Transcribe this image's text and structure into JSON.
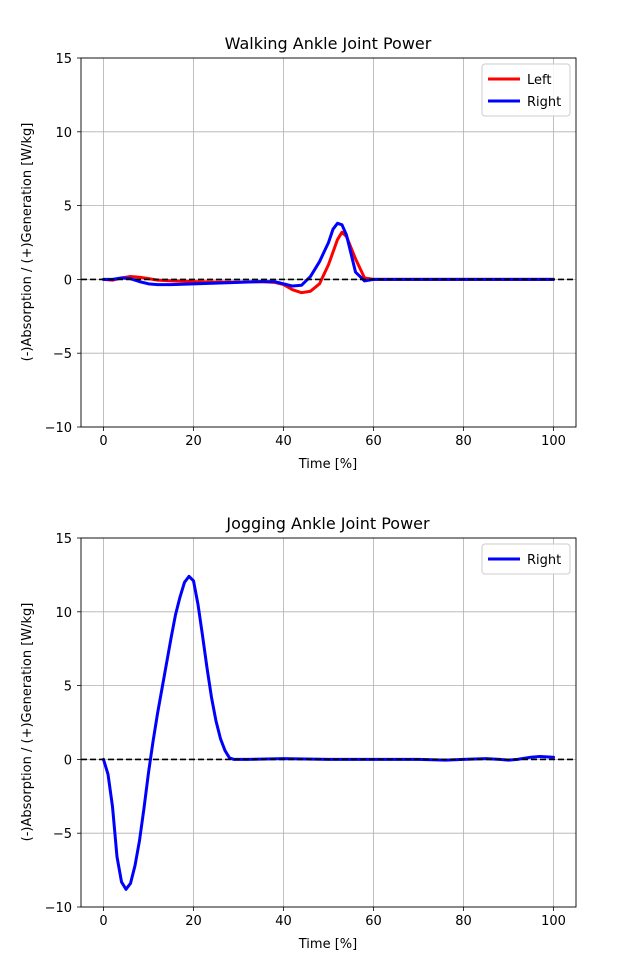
{
  "chart_data": [
    {
      "type": "line",
      "title": "Walking Ankle Joint Power",
      "xlabel": "Time [%]",
      "ylabel": "(-)Absorption / (+)Generation [W/kg]",
      "xlim": [
        -5,
        105
      ],
      "ylim": [
        -10,
        15
      ],
      "xticks": [
        0,
        20,
        40,
        60,
        80,
        100
      ],
      "yticks": [
        -10,
        -5,
        0,
        5,
        10,
        15
      ],
      "grid": true,
      "legend": "top-right",
      "reference_line": {
        "y": 0,
        "style": "dashed",
        "color": "#000000"
      },
      "series": [
        {
          "name": "Left",
          "color": "#ff0000",
          "x": [
            0,
            2,
            4,
            6,
            8,
            10,
            12,
            15,
            20,
            25,
            30,
            35,
            38,
            40,
            42,
            44,
            46,
            48,
            50,
            52,
            53,
            54,
            56,
            58,
            60,
            70,
            80,
            90,
            100
          ],
          "y": [
            0.0,
            -0.05,
            0.1,
            0.2,
            0.15,
            0.05,
            -0.05,
            -0.1,
            -0.15,
            -0.18,
            -0.18,
            -0.15,
            -0.2,
            -0.35,
            -0.7,
            -0.9,
            -0.8,
            -0.3,
            1.0,
            2.7,
            3.2,
            2.9,
            1.4,
            0.1,
            0.0,
            0.0,
            0.0,
            0.0,
            0.0
          ]
        },
        {
          "name": "Right",
          "color": "#0000ff",
          "x": [
            0,
            2,
            4,
            6,
            8,
            10,
            12,
            15,
            20,
            25,
            30,
            35,
            38,
            40,
            42,
            44,
            46,
            48,
            50,
            51,
            52,
            53,
            54,
            56,
            58,
            60,
            70,
            80,
            90,
            100
          ],
          "y": [
            0.0,
            0.0,
            0.1,
            0.05,
            -0.15,
            -0.3,
            -0.35,
            -0.35,
            -0.3,
            -0.25,
            -0.2,
            -0.15,
            -0.15,
            -0.3,
            -0.45,
            -0.4,
            0.2,
            1.2,
            2.5,
            3.4,
            3.8,
            3.7,
            3.0,
            0.5,
            -0.1,
            0.0,
            0.0,
            0.0,
            0.0,
            0.0
          ]
        }
      ]
    },
    {
      "type": "line",
      "title": "Jogging Ankle Joint Power",
      "xlabel": "Time [%]",
      "ylabel": "(-)Absorption / (+)Generation [W/kg]",
      "xlim": [
        -5,
        105
      ],
      "ylim": [
        -10,
        15
      ],
      "xticks": [
        0,
        20,
        40,
        60,
        80,
        100
      ],
      "yticks": [
        -10,
        -5,
        0,
        5,
        10,
        15
      ],
      "grid": true,
      "legend": "top-right",
      "reference_line": {
        "y": 0,
        "style": "dashed",
        "color": "#000000"
      },
      "series": [
        {
          "name": "Right",
          "color": "#0000ff",
          "x": [
            0,
            1,
            2,
            3,
            4,
            5,
            6,
            7,
            8,
            9,
            10,
            11,
            12,
            13,
            14,
            15,
            16,
            17,
            18,
            19,
            20,
            21,
            22,
            23,
            24,
            25,
            26,
            27,
            28,
            29,
            30,
            31,
            32,
            40,
            50,
            60,
            70,
            76,
            80,
            85,
            88,
            90,
            92,
            95,
            97,
            100
          ],
          "y": [
            0.0,
            -1.0,
            -3.2,
            -6.6,
            -8.3,
            -8.8,
            -8.4,
            -7.2,
            -5.5,
            -3.3,
            -0.9,
            1.2,
            3.1,
            4.8,
            6.5,
            8.2,
            9.8,
            11.0,
            12.0,
            12.4,
            12.1,
            10.5,
            8.4,
            6.2,
            4.2,
            2.6,
            1.4,
            0.6,
            0.1,
            0.0,
            0.0,
            0.0,
            0.0,
            0.05,
            0.0,
            0.0,
            0.0,
            -0.05,
            0.0,
            0.05,
            0.0,
            -0.05,
            0.0,
            0.15,
            0.2,
            0.15
          ]
        }
      ]
    }
  ]
}
